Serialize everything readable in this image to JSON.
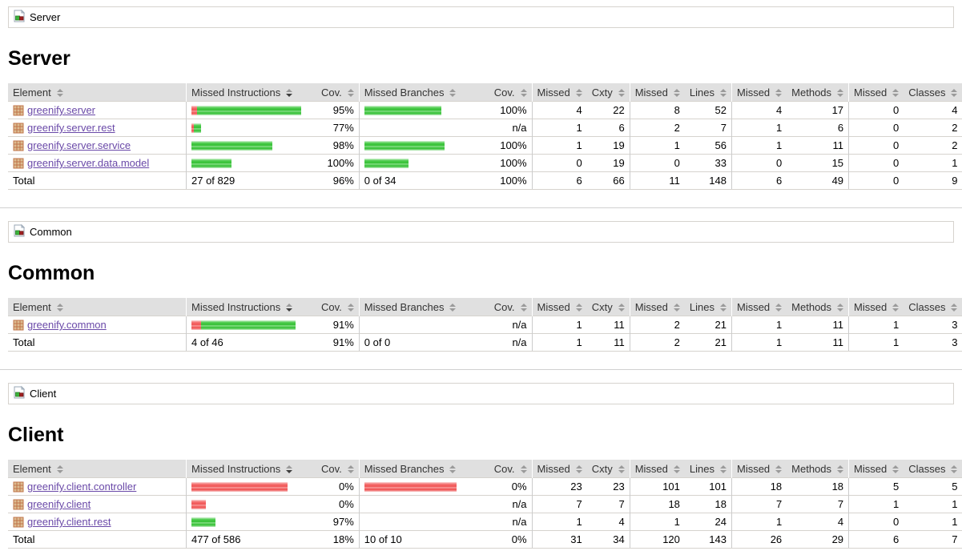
{
  "colors": {
    "header_bg": "#e0e0e0",
    "row_border": "#d6d3ce",
    "link_purple": "#6a49a8",
    "bar_green": "#3bc43b",
    "bar_red": "#f25555"
  },
  "sections": [
    {
      "breadcrumb": {
        "label": "Server"
      },
      "title": "Server",
      "table": {
        "headers": [
          {
            "label": "Element",
            "sort": "none"
          },
          {
            "label": "Missed Instructions",
            "sort": "desc"
          },
          {
            "label": "Cov.",
            "sort": "none"
          },
          {
            "label": "Missed Branches",
            "sort": "none"
          },
          {
            "label": "Cov.",
            "sort": "none"
          },
          {
            "label": "Missed",
            "sort": "none"
          },
          {
            "label": "Cxty",
            "sort": "none"
          },
          {
            "label": "Missed",
            "sort": "none"
          },
          {
            "label": "Lines",
            "sort": "none"
          },
          {
            "label": "Missed",
            "sort": "none"
          },
          {
            "label": "Methods",
            "sort": "none"
          },
          {
            "label": "Missed",
            "sort": "none"
          },
          {
            "label": "Classes",
            "sort": "none"
          }
        ],
        "rows": [
          {
            "name": "greenify.server",
            "instr_bar": {
              "red": 7,
              "green": 130
            },
            "instr_cov": "95%",
            "branch_bar": {
              "red": 0,
              "green": 96
            },
            "branch_cov": "100%",
            "counters": [
              "4",
              "22",
              "8",
              "52",
              "4",
              "17",
              "0",
              "4"
            ]
          },
          {
            "name": "greenify.server.rest",
            "instr_bar": {
              "red": 3,
              "green": 9
            },
            "instr_cov": "77%",
            "branch_bar": {
              "red": 0,
              "green": 0
            },
            "branch_cov": "n/a",
            "counters": [
              "1",
              "6",
              "2",
              "7",
              "1",
              "6",
              "0",
              "2"
            ]
          },
          {
            "name": "greenify.server.service",
            "instr_bar": {
              "red": 0,
              "green": 101
            },
            "instr_cov": "98%",
            "branch_bar": {
              "red": 0,
              "green": 100
            },
            "branch_cov": "100%",
            "counters": [
              "1",
              "19",
              "1",
              "56",
              "1",
              "11",
              "0",
              "2"
            ]
          },
          {
            "name": "greenify.server.data.model",
            "instr_bar": {
              "red": 0,
              "green": 50
            },
            "instr_cov": "100%",
            "branch_bar": {
              "red": 0,
              "green": 55
            },
            "branch_cov": "100%",
            "counters": [
              "0",
              "19",
              "0",
              "33",
              "0",
              "15",
              "0",
              "1"
            ]
          }
        ],
        "total": {
          "label": "Total",
          "instr_text": "27 of 829",
          "instr_cov": "96%",
          "branch_text": "0 of 34",
          "branch_cov": "100%",
          "counters": [
            "6",
            "66",
            "11",
            "148",
            "6",
            "49",
            "0",
            "9"
          ]
        }
      }
    },
    {
      "breadcrumb": {
        "label": "Common"
      },
      "title": "Common",
      "table": {
        "headers": [
          {
            "label": "Element",
            "sort": "none"
          },
          {
            "label": "Missed Instructions",
            "sort": "desc"
          },
          {
            "label": "Cov.",
            "sort": "none"
          },
          {
            "label": "Missed Branches",
            "sort": "none"
          },
          {
            "label": "Cov.",
            "sort": "none"
          },
          {
            "label": "Missed",
            "sort": "none"
          },
          {
            "label": "Cxty",
            "sort": "none"
          },
          {
            "label": "Missed",
            "sort": "none"
          },
          {
            "label": "Lines",
            "sort": "none"
          },
          {
            "label": "Missed",
            "sort": "none"
          },
          {
            "label": "Methods",
            "sort": "none"
          },
          {
            "label": "Missed",
            "sort": "none"
          },
          {
            "label": "Classes",
            "sort": "none"
          }
        ],
        "rows": [
          {
            "name": "greenify.common",
            "instr_bar": {
              "red": 12,
              "green": 118
            },
            "instr_cov": "91%",
            "branch_bar": {
              "red": 0,
              "green": 0
            },
            "branch_cov": "n/a",
            "counters": [
              "1",
              "11",
              "2",
              "21",
              "1",
              "11",
              "1",
              "3"
            ]
          }
        ],
        "total": {
          "label": "Total",
          "instr_text": "4 of 46",
          "instr_cov": "91%",
          "branch_text": "0 of 0",
          "branch_cov": "n/a",
          "counters": [
            "1",
            "11",
            "2",
            "21",
            "1",
            "11",
            "1",
            "3"
          ]
        }
      }
    },
    {
      "breadcrumb": {
        "label": "Client"
      },
      "title": "Client",
      "table": {
        "headers": [
          {
            "label": "Element",
            "sort": "none"
          },
          {
            "label": "Missed Instructions",
            "sort": "desc"
          },
          {
            "label": "Cov.",
            "sort": "none"
          },
          {
            "label": "Missed Branches",
            "sort": "none"
          },
          {
            "label": "Cov.",
            "sort": "none"
          },
          {
            "label": "Missed",
            "sort": "none"
          },
          {
            "label": "Cxty",
            "sort": "none"
          },
          {
            "label": "Missed",
            "sort": "none"
          },
          {
            "label": "Lines",
            "sort": "none"
          },
          {
            "label": "Missed",
            "sort": "none"
          },
          {
            "label": "Methods",
            "sort": "none"
          },
          {
            "label": "Missed",
            "sort": "none"
          },
          {
            "label": "Classes",
            "sort": "none"
          }
        ],
        "rows": [
          {
            "name": "greenify.client.controller",
            "instr_bar": {
              "red": 120,
              "green": 0
            },
            "instr_cov": "0%",
            "branch_bar": {
              "red": 115,
              "green": 0
            },
            "branch_cov": "0%",
            "counters": [
              "23",
              "23",
              "101",
              "101",
              "18",
              "18",
              "5",
              "5"
            ]
          },
          {
            "name": "greenify.client",
            "instr_bar": {
              "red": 18,
              "green": 0
            },
            "instr_cov": "0%",
            "branch_bar": {
              "red": 0,
              "green": 0
            },
            "branch_cov": "n/a",
            "counters": [
              "7",
              "7",
              "18",
              "18",
              "7",
              "7",
              "1",
              "1"
            ]
          },
          {
            "name": "greenify.client.rest",
            "instr_bar": {
              "red": 0,
              "green": 30
            },
            "instr_cov": "97%",
            "branch_bar": {
              "red": 0,
              "green": 0
            },
            "branch_cov": "n/a",
            "counters": [
              "1",
              "4",
              "1",
              "24",
              "1",
              "4",
              "0",
              "1"
            ]
          }
        ],
        "total": {
          "label": "Total",
          "instr_text": "477 of 586",
          "instr_cov": "18%",
          "branch_text": "10 of 10",
          "branch_cov": "0%",
          "counters": [
            "31",
            "34",
            "120",
            "143",
            "26",
            "29",
            "6",
            "7"
          ]
        }
      }
    }
  ]
}
